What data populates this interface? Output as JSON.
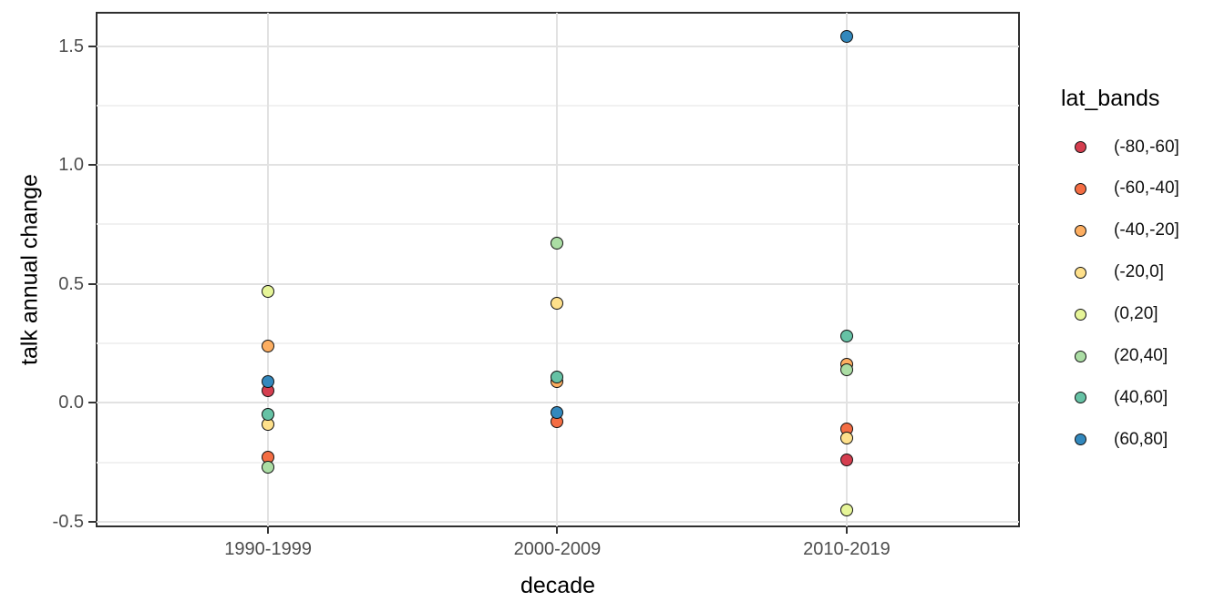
{
  "chart_data": {
    "type": "scatter",
    "title": "",
    "xlabel": "decade",
    "ylabel": "talk annual change",
    "categories": [
      "1990-1999",
      "2000-2009",
      "2010-2019"
    ],
    "ylim": [
      -0.52,
      1.64
    ],
    "yticks": [
      1.5,
      1.0,
      0.5,
      0.0,
      -0.5
    ],
    "ytick_labels": [
      "1.5",
      "1.0",
      "0.5",
      "0.0",
      "-0.5"
    ],
    "yminor_gridlines": [
      1.25,
      0.75,
      0.25,
      -0.25
    ],
    "grid": "on",
    "point_style": "filled-circle-black-outline",
    "legend": {
      "title": "lat_bands",
      "position": "right"
    },
    "series": [
      {
        "name": "(-80,-60]",
        "color": "#D53E4F",
        "values": [
          0.05,
          null,
          -0.24
        ]
      },
      {
        "name": "(-60,-40]",
        "color": "#F46D43",
        "values": [
          -0.23,
          -0.08,
          -0.11
        ]
      },
      {
        "name": "(-40,-20]",
        "color": "#FDAE61",
        "values": [
          0.24,
          0.09,
          0.16
        ]
      },
      {
        "name": "(-20,0]",
        "color": "#FEE08B",
        "values": [
          -0.09,
          0.42,
          -0.15
        ]
      },
      {
        "name": "(0,20]",
        "color": "#E6F598",
        "values": [
          0.47,
          null,
          -0.45
        ]
      },
      {
        "name": "(20,40]",
        "color": "#ABDDA4",
        "values": [
          -0.27,
          0.67,
          0.14
        ]
      },
      {
        "name": "(40,60]",
        "color": "#66C2A5",
        "values": [
          -0.05,
          0.11,
          0.28
        ]
      },
      {
        "name": "(60,80]",
        "color": "#3288BD",
        "values": [
          0.09,
          -0.04,
          1.54
        ]
      }
    ]
  }
}
